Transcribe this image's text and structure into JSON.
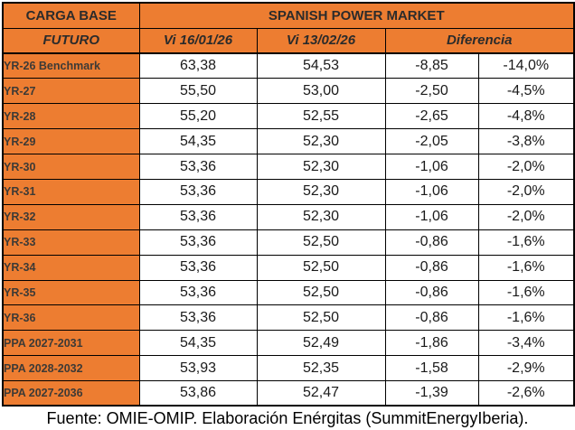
{
  "chart_data": {
    "type": "table",
    "corner_label": "CARGA BASE",
    "title": "SPANISH POWER MARKET",
    "columns": [
      "FUTURO",
      "Vi 16/01/26",
      "Vi 13/02/26",
      "Diferencia"
    ],
    "rows": [
      {
        "label": "YR-26 Benchmark",
        "vi_16_01_26": "63,38",
        "vi_13_02_26": "54,53",
        "diferencia": "-8,85",
        "diferencia_pct": "-14,0%"
      },
      {
        "label": "YR-27",
        "vi_16_01_26": "55,50",
        "vi_13_02_26": "53,00",
        "diferencia": "-2,50",
        "diferencia_pct": "-4,5%"
      },
      {
        "label": "YR-28",
        "vi_16_01_26": "55,20",
        "vi_13_02_26": "52,55",
        "diferencia": "-2,65",
        "diferencia_pct": "-4,8%"
      },
      {
        "label": "YR-29",
        "vi_16_01_26": "54,35",
        "vi_13_02_26": "52,30",
        "diferencia": "-2,05",
        "diferencia_pct": "-3,8%"
      },
      {
        "label": "YR-30",
        "vi_16_01_26": "53,36",
        "vi_13_02_26": "52,30",
        "diferencia": "-1,06",
        "diferencia_pct": "-2,0%"
      },
      {
        "label": "YR-31",
        "vi_16_01_26": "53,36",
        "vi_13_02_26": "52,30",
        "diferencia": "-1,06",
        "diferencia_pct": "-2,0%"
      },
      {
        "label": "YR-32",
        "vi_16_01_26": "53,36",
        "vi_13_02_26": "52,30",
        "diferencia": "-1,06",
        "diferencia_pct": "-2,0%"
      },
      {
        "label": "YR-33",
        "vi_16_01_26": "53,36",
        "vi_13_02_26": "52,50",
        "diferencia": "-0,86",
        "diferencia_pct": "-1,6%"
      },
      {
        "label": "YR-34",
        "vi_16_01_26": "53,36",
        "vi_13_02_26": "52,50",
        "diferencia": "-0,86",
        "diferencia_pct": "-1,6%"
      },
      {
        "label": "YR-35",
        "vi_16_01_26": "53,36",
        "vi_13_02_26": "52,50",
        "diferencia": "-0,86",
        "diferencia_pct": "-1,6%"
      },
      {
        "label": "YR-36",
        "vi_16_01_26": "53,36",
        "vi_13_02_26": "52,50",
        "diferencia": "-0,86",
        "diferencia_pct": "-1,6%"
      },
      {
        "label": "PPA 2027-2031",
        "vi_16_01_26": "54,35",
        "vi_13_02_26": "52,49",
        "diferencia": "-1,86",
        "diferencia_pct": "-3,4%"
      },
      {
        "label": "PPA 2028-2032",
        "vi_16_01_26": "53,93",
        "vi_13_02_26": "52,35",
        "diferencia": "-1,58",
        "diferencia_pct": "-2,9%"
      },
      {
        "label": "PPA 2027-2036",
        "vi_16_01_26": "53,86",
        "vi_13_02_26": "52,47",
        "diferencia": "-1,39",
        "diferencia_pct": "-2,6%"
      }
    ],
    "colors": {
      "orange": "#ED7D31",
      "border": "#000000",
      "header_text": "#2b2b2b",
      "label_text": "#3d3a36"
    },
    "layout_hints": {
      "grid": true,
      "diferencia_spans_two_columns": true
    }
  },
  "footer": {
    "text": "Fuente: OMIE-OMIP. Elaboración Enérgitas (SummitEnergyIberia)."
  }
}
